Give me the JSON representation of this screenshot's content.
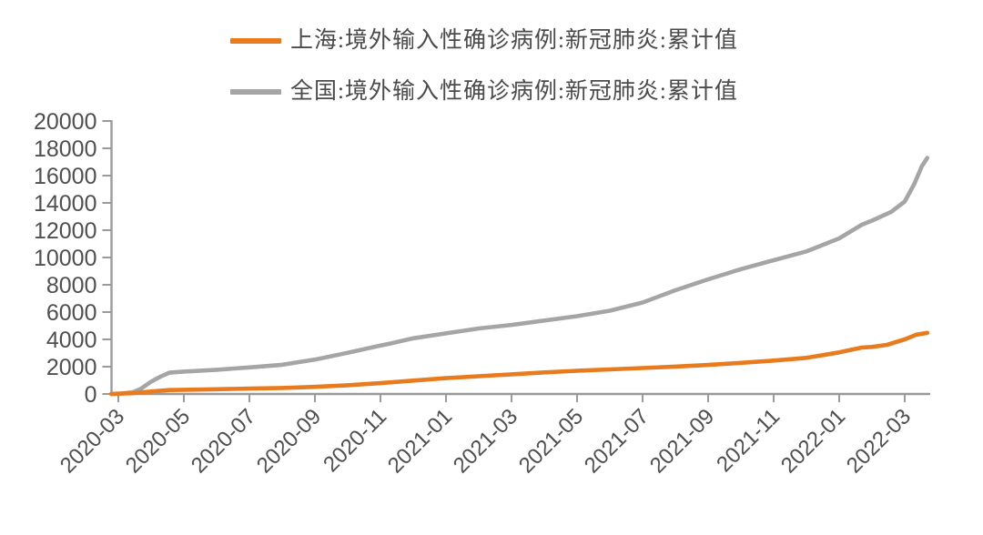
{
  "chart_data": {
    "type": "line",
    "title": "",
    "xlabel": "",
    "ylabel": "",
    "grid": false,
    "legend_position": "top-center",
    "ylim": [
      0,
      20000
    ],
    "yticks": [
      0,
      2000,
      4000,
      6000,
      8000,
      10000,
      12000,
      14000,
      16000,
      18000,
      20000
    ],
    "xticks": [
      "2020-03",
      "2020-05",
      "2020-07",
      "2020-09",
      "2020-11",
      "2021-01",
      "2021-03",
      "2021-05",
      "2021-07",
      "2021-09",
      "2021-11",
      "2022-01",
      "2022-03"
    ],
    "axis_color": "#9a9a9a",
    "tick_label_color": "#4f4f4f",
    "series": [
      {
        "id": "shanghai",
        "name": "上海:境外输入性确诊病例:新冠肺炎:累计值",
        "color": "#e87b1e",
        "points": [
          [
            "2020-02-25",
            0
          ],
          [
            "2020-03-15",
            60
          ],
          [
            "2020-04-01",
            180
          ],
          [
            "2020-04-18",
            285
          ],
          [
            "2020-05-01",
            310
          ],
          [
            "2020-06-01",
            345
          ],
          [
            "2020-07-01",
            390
          ],
          [
            "2020-08-01",
            440
          ],
          [
            "2020-09-01",
            520
          ],
          [
            "2020-10-01",
            640
          ],
          [
            "2020-11-01",
            790
          ],
          [
            "2020-12-01",
            980
          ],
          [
            "2021-01-01",
            1160
          ],
          [
            "2021-02-01",
            1300
          ],
          [
            "2021-03-01",
            1440
          ],
          [
            "2021-04-01",
            1580
          ],
          [
            "2021-05-01",
            1700
          ],
          [
            "2021-06-01",
            1800
          ],
          [
            "2021-07-01",
            1900
          ],
          [
            "2021-08-01",
            2010
          ],
          [
            "2021-09-01",
            2130
          ],
          [
            "2021-10-01",
            2280
          ],
          [
            "2021-11-01",
            2450
          ],
          [
            "2021-12-01",
            2650
          ],
          [
            "2022-01-01",
            3050
          ],
          [
            "2022-01-22",
            3400
          ],
          [
            "2022-02-01",
            3450
          ],
          [
            "2022-02-15",
            3600
          ],
          [
            "2022-03-01",
            4000
          ],
          [
            "2022-03-12",
            4350
          ],
          [
            "2022-03-22",
            4480
          ]
        ]
      },
      {
        "id": "national",
        "name": "全国:境外输入性确诊病例:新冠肺炎:累计值",
        "color": "#a5a5a5",
        "points": [
          [
            "2020-02-25",
            0
          ],
          [
            "2020-03-05",
            40
          ],
          [
            "2020-03-15",
            140
          ],
          [
            "2020-03-22",
            380
          ],
          [
            "2020-04-01",
            900
          ],
          [
            "2020-04-10",
            1280
          ],
          [
            "2020-04-18",
            1560
          ],
          [
            "2020-05-01",
            1640
          ],
          [
            "2020-06-01",
            1770
          ],
          [
            "2020-07-01",
            1950
          ],
          [
            "2020-08-01",
            2140
          ],
          [
            "2020-09-01",
            2520
          ],
          [
            "2020-10-01",
            3020
          ],
          [
            "2020-11-01",
            3550
          ],
          [
            "2020-11-10",
            3690
          ],
          [
            "2020-12-01",
            4080
          ],
          [
            "2021-01-01",
            4440
          ],
          [
            "2021-02-01",
            4800
          ],
          [
            "2021-03-01",
            5060
          ],
          [
            "2021-04-01",
            5380
          ],
          [
            "2021-05-01",
            5700
          ],
          [
            "2021-06-01",
            6100
          ],
          [
            "2021-07-01",
            6700
          ],
          [
            "2021-08-01",
            7600
          ],
          [
            "2021-09-01",
            8400
          ],
          [
            "2021-10-01",
            9150
          ],
          [
            "2021-11-01",
            9800
          ],
          [
            "2021-12-01",
            10450
          ],
          [
            "2022-01-01",
            11400
          ],
          [
            "2022-01-22",
            12400
          ],
          [
            "2022-02-01",
            12700
          ],
          [
            "2022-02-19",
            13350
          ],
          [
            "2022-03-01",
            14100
          ],
          [
            "2022-03-10",
            15400
          ],
          [
            "2022-03-17",
            16700
          ],
          [
            "2022-03-22",
            17300
          ]
        ]
      }
    ]
  }
}
